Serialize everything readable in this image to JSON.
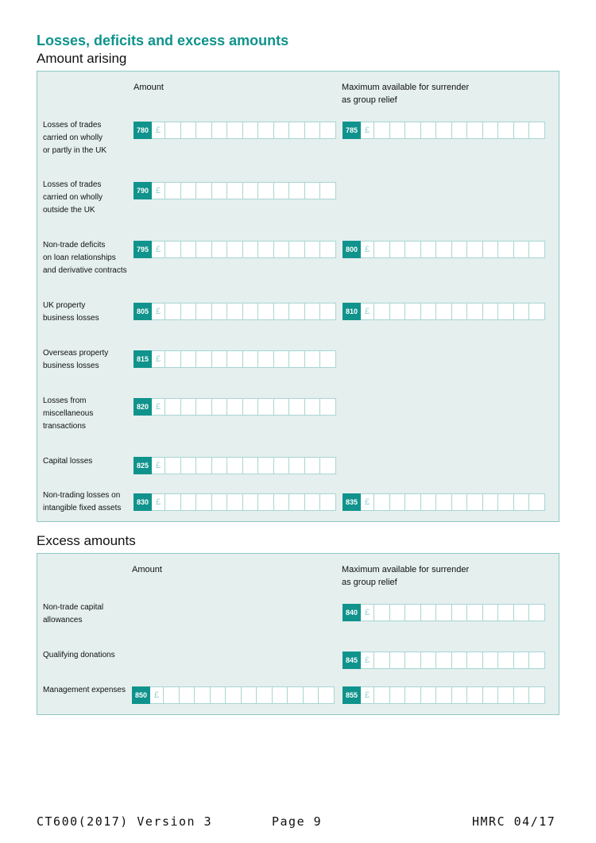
{
  "section": {
    "title": "Losses, deficits and excess amounts",
    "amount_arising_heading": "Amount arising",
    "excess_amounts_heading": "Excess amounts"
  },
  "columns": {
    "amount": "Amount",
    "max_line1": "Maximum available for surrender",
    "max_line2": "as group relief"
  },
  "currency_symbol": "£",
  "amount_arising_rows": [
    {
      "label": "Losses of trades\ncarried on wholly\nor partly in the UK",
      "amount_box": "780",
      "max_box": "785",
      "amount_value": "",
      "max_value": ""
    },
    {
      "label": "Losses of trades\ncarried on wholly\noutside the UK",
      "amount_box": "790",
      "max_box": null,
      "amount_value": "",
      "max_value": ""
    },
    {
      "label": "Non-trade deficits\non loan relationships\nand derivative contracts",
      "amount_box": "795",
      "max_box": "800",
      "amount_value": "",
      "max_value": ""
    },
    {
      "label": "UK property\nbusiness losses",
      "amount_box": "805",
      "max_box": "810",
      "amount_value": "",
      "max_value": ""
    },
    {
      "label": "Overseas property\nbusiness losses",
      "amount_box": "815",
      "max_box": null,
      "amount_value": "",
      "max_value": ""
    },
    {
      "label": "Losses from\nmiscellaneous\ntransactions",
      "amount_box": "820",
      "max_box": null,
      "amount_value": "",
      "max_value": ""
    },
    {
      "label": "Capital losses",
      "amount_box": "825",
      "max_box": null,
      "amount_value": "",
      "max_value": ""
    },
    {
      "label": "Non-trading losses on\nintangible fixed assets",
      "amount_box": "830",
      "max_box": "835",
      "amount_value": "",
      "max_value": ""
    }
  ],
  "excess_rows": [
    {
      "label": "Non-trade capital\nallowances",
      "amount_box": null,
      "max_box": "840",
      "amount_value": "",
      "max_value": ""
    },
    {
      "label": "Qualifying donations",
      "amount_box": null,
      "max_box": "845",
      "amount_value": "",
      "max_value": ""
    },
    {
      "label": "Management expenses",
      "amount_box": "850",
      "max_box": "855",
      "amount_value": "",
      "max_value": ""
    }
  ],
  "footer": {
    "form_version": "CT600(2017) Version 3",
    "page": "Page 9",
    "issuer": "HMRC 04/17"
  }
}
